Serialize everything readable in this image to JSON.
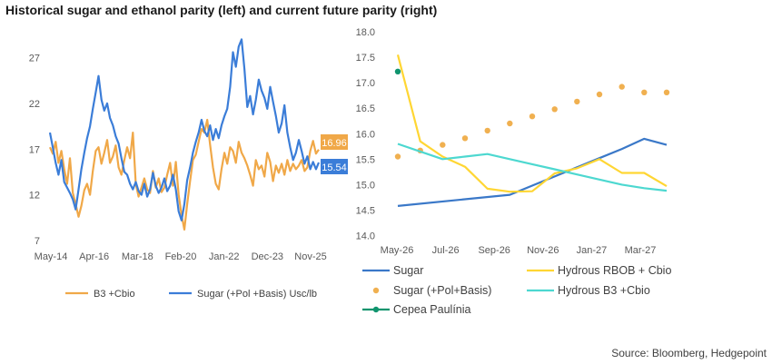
{
  "title": "Historical sugar and ethanol parity (left) and current future parity (right)",
  "source": "Source: Bloomberg, Hedgepoint",
  "colors": {
    "orange": "#F0A848",
    "blue": "#3B7DD8",
    "sugar_line": "#3A78C8",
    "rbob": "#FFD633",
    "pol_basis": "#F0B050",
    "hydrous_b3": "#4DD8D0",
    "cepea": "#10946E"
  },
  "chart_data": [
    {
      "type": "line",
      "title": "Historical sugar and ethanol parity",
      "x_ticks": [
        "May-14",
        "Apr-16",
        "Mar-18",
        "Feb-20",
        "Jan-22",
        "Dec-23",
        "Nov-25"
      ],
      "y_ticks": [
        7,
        12,
        17,
        22,
        27
      ],
      "ylim": [
        7,
        30
      ],
      "series": [
        {
          "name": "B3 +Cbio",
          "last_value": "16.96",
          "values": [
            17.2,
            16.5,
            17.8,
            15.5,
            16.8,
            14.8,
            13.2,
            16.0,
            12.2,
            11.0,
            9.6,
            10.8,
            12.5,
            13.2,
            12.0,
            14.6,
            16.8,
            17.2,
            15.4,
            16.6,
            18.0,
            15.5,
            16.2,
            17.4,
            15.0,
            14.2,
            15.8,
            17.2,
            16.0,
            18.8,
            13.2,
            11.8,
            12.8,
            13.8,
            12.6,
            12.2,
            14.6,
            12.8,
            13.8,
            12.3,
            12.8,
            14.2,
            15.5,
            13.0,
            15.6,
            12.0,
            9.8,
            8.2,
            11.0,
            13.5,
            15.8,
            16.4,
            17.8,
            19.2,
            18.8,
            20.2,
            17.5,
            15.0,
            13.2,
            12.6,
            14.8,
            16.6,
            15.4,
            17.2,
            16.8,
            15.5,
            17.8,
            16.6,
            16.0,
            15.2,
            14.2,
            13.0,
            15.8,
            14.8,
            15.2,
            14.0,
            16.6,
            15.6,
            13.5,
            15.2,
            14.4,
            15.4,
            14.2,
            15.8,
            14.6,
            15.4,
            14.8,
            15.2,
            15.8,
            14.6,
            15.0,
            16.8,
            17.9,
            16.5,
            16.96
          ]
        },
        {
          "name": "Sugar (+Pol +Basis) Usc/lb",
          "last_value": "15.54",
          "values": [
            18.8,
            17.2,
            15.5,
            14.2,
            15.8,
            13.4,
            12.8,
            12.2,
            11.5,
            10.4,
            12.6,
            14.8,
            16.6,
            18.2,
            19.5,
            21.4,
            23.2,
            25.0,
            22.4,
            21.2,
            22.0,
            20.4,
            19.6,
            18.4,
            17.6,
            16.0,
            14.5,
            14.2,
            13.2,
            12.6,
            13.4,
            12.4,
            12.0,
            13.2,
            11.8,
            12.6,
            14.4,
            13.0,
            12.2,
            12.8,
            13.8,
            12.4,
            13.0,
            14.2,
            12.6,
            10.2,
            9.2,
            11.0,
            13.6,
            15.0,
            16.6,
            17.8,
            18.8,
            20.2,
            19.0,
            18.4,
            19.6,
            18.0,
            19.2,
            18.2,
            19.6,
            20.6,
            21.4,
            23.8,
            27.6,
            26.0,
            28.2,
            29.0,
            25.8,
            21.6,
            22.8,
            20.8,
            22.4,
            24.6,
            23.4,
            22.6,
            21.4,
            23.8,
            22.2,
            20.6,
            18.8,
            19.8,
            21.8,
            18.8,
            17.2,
            15.8,
            16.6,
            18.0,
            16.8,
            15.4,
            16.2,
            14.8,
            15.6,
            14.8,
            15.54
          ]
        }
      ]
    },
    {
      "type": "line",
      "title": "Current future parity",
      "x_ticks": [
        "May-26",
        "Jul-26",
        "Sep-26",
        "Nov-26",
        "Jan-27",
        "Mar-27"
      ],
      "y_ticks": [
        "14.0",
        "14.5",
        "15.0",
        "15.5",
        "16.0",
        "16.5",
        "17.0",
        "17.5",
        "18.0"
      ],
      "ylim": [
        14.0,
        18.0
      ],
      "series": [
        {
          "name": "Sugar",
          "style": "line",
          "x": [
            0,
            5,
            6,
            7,
            8,
            9,
            10,
            11,
            12
          ],
          "values": [
            14.58,
            14.8,
            14.98,
            15.16,
            15.34,
            15.52,
            15.7,
            15.9,
            15.78
          ]
        },
        {
          "name": "Hydrous RBOB + Cbio",
          "style": "line",
          "x": [
            0,
            1,
            2,
            3,
            4,
            5,
            6,
            7,
            8,
            9,
            10,
            11,
            12
          ],
          "values": [
            17.55,
            15.85,
            15.55,
            15.35,
            14.92,
            14.86,
            14.87,
            15.22,
            15.32,
            15.5,
            15.23,
            15.23,
            14.97
          ]
        },
        {
          "name": "Sugar (+Pol+Basis)",
          "style": "dots",
          "x": [
            0,
            1,
            2,
            3,
            4,
            5,
            6,
            7,
            8,
            9,
            10,
            11,
            12
          ],
          "values": [
            15.55,
            15.67,
            15.78,
            15.91,
            16.06,
            16.2,
            16.34,
            16.48,
            16.63,
            16.77,
            16.92,
            16.81,
            16.81
          ]
        },
        {
          "name": "Hydrous B3 +Cbio",
          "style": "line",
          "x": [
            0,
            1,
            2,
            3,
            4,
            5,
            6,
            7,
            8,
            9,
            10,
            11,
            12
          ],
          "values": [
            15.8,
            15.65,
            15.5,
            15.55,
            15.6,
            15.5,
            15.4,
            15.3,
            15.2,
            15.1,
            15.0,
            14.93,
            14.88
          ]
        },
        {
          "name": "Cepea Paulínia",
          "style": "dot",
          "x": [
            0
          ],
          "values": [
            17.22
          ]
        }
      ]
    }
  ]
}
